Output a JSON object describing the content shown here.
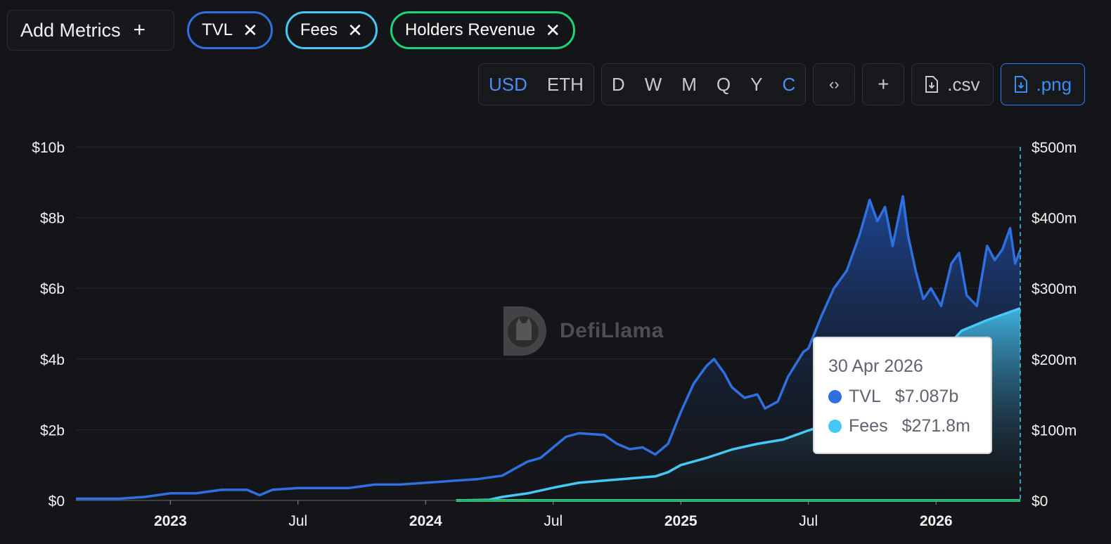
{
  "toolbar": {
    "add_metrics_label": "Add Metrics",
    "metrics": [
      {
        "label": "TVL",
        "color": "#2f6fe0"
      },
      {
        "label": "Fees",
        "color": "#45c8f5"
      },
      {
        "label": "Holders Revenue",
        "color": "#1ed47a"
      }
    ],
    "currency": {
      "options": [
        "USD",
        "ETH"
      ],
      "selected": "USD"
    },
    "granularity": {
      "options": [
        "D",
        "W",
        "M",
        "Q",
        "Y",
        "C"
      ],
      "selected": "C"
    },
    "embed_icon": "code-icon",
    "add_icon": "plus-icon",
    "csv_label": ".csv",
    "png_label": ".png"
  },
  "tooltip": {
    "date": "30 Apr 2026",
    "rows": [
      {
        "name": "TVL",
        "value": "$7.087b",
        "color": "#2f6fe0"
      },
      {
        "name": "Fees",
        "value": "$271.8m",
        "color": "#45c8f5"
      }
    ]
  },
  "watermark": "DefiLlama",
  "chart_data": {
    "type": "area",
    "y_left": {
      "ticks": [
        "$0",
        "$2b",
        "$4b",
        "$6b",
        "$8b",
        "$10b"
      ],
      "range": [
        0,
        10
      ]
    },
    "y_right": {
      "ticks": [
        "$0",
        "$100m",
        "$200m",
        "$300m",
        "$400m",
        "$500m"
      ],
      "range": [
        0,
        500
      ]
    },
    "x_ticks": [
      {
        "label": "2023",
        "bold": true,
        "t": 2023.0
      },
      {
        "label": "Jul",
        "bold": false,
        "t": 2023.5
      },
      {
        "label": "2024",
        "bold": true,
        "t": 2024.0
      },
      {
        "label": "Jul",
        "bold": false,
        "t": 2024.5
      },
      {
        "label": "2025",
        "bold": true,
        "t": 2025.0
      },
      {
        "label": "Jul",
        "bold": false,
        "t": 2025.5
      },
      {
        "label": "2026",
        "bold": true,
        "t": 2026.0
      }
    ],
    "x_range": [
      2022.63,
      2026.33
    ],
    "grid": true,
    "series": [
      {
        "name": "TVL",
        "axis": "left",
        "color": "#2f6fe0",
        "points": [
          [
            2022.63,
            0.05
          ],
          [
            2022.8,
            0.05
          ],
          [
            2022.9,
            0.1
          ],
          [
            2023.0,
            0.2
          ],
          [
            2023.1,
            0.2
          ],
          [
            2023.2,
            0.3
          ],
          [
            2023.3,
            0.3
          ],
          [
            2023.35,
            0.15
          ],
          [
            2023.4,
            0.3
          ],
          [
            2023.5,
            0.35
          ],
          [
            2023.6,
            0.35
          ],
          [
            2023.7,
            0.35
          ],
          [
            2023.8,
            0.45
          ],
          [
            2023.9,
            0.45
          ],
          [
            2024.0,
            0.5
          ],
          [
            2024.1,
            0.55
          ],
          [
            2024.2,
            0.6
          ],
          [
            2024.3,
            0.7
          ],
          [
            2024.35,
            0.9
          ],
          [
            2024.4,
            1.1
          ],
          [
            2024.45,
            1.2
          ],
          [
            2024.5,
            1.5
          ],
          [
            2024.55,
            1.8
          ],
          [
            2024.6,
            1.9
          ],
          [
            2024.7,
            1.85
          ],
          [
            2024.75,
            1.6
          ],
          [
            2024.8,
            1.45
          ],
          [
            2024.85,
            1.5
          ],
          [
            2024.9,
            1.3
          ],
          [
            2024.95,
            1.6
          ],
          [
            2025.0,
            2.5
          ],
          [
            2025.05,
            3.3
          ],
          [
            2025.1,
            3.8
          ],
          [
            2025.13,
            4.0
          ],
          [
            2025.17,
            3.6
          ],
          [
            2025.2,
            3.2
          ],
          [
            2025.25,
            2.9
          ],
          [
            2025.3,
            3.0
          ],
          [
            2025.33,
            2.6
          ],
          [
            2025.38,
            2.8
          ],
          [
            2025.42,
            3.5
          ],
          [
            2025.48,
            4.2
          ],
          [
            2025.5,
            4.3
          ],
          [
            2025.55,
            5.2
          ],
          [
            2025.6,
            6.0
          ],
          [
            2025.65,
            6.5
          ],
          [
            2025.7,
            7.5
          ],
          [
            2025.74,
            8.5
          ],
          [
            2025.77,
            7.9
          ],
          [
            2025.8,
            8.3
          ],
          [
            2025.83,
            7.2
          ],
          [
            2025.87,
            8.6
          ],
          [
            2025.89,
            7.5
          ],
          [
            2025.92,
            6.5
          ],
          [
            2025.95,
            5.7
          ],
          [
            2025.98,
            6.0
          ],
          [
            2026.02,
            5.5
          ],
          [
            2026.06,
            6.7
          ],
          [
            2026.09,
            7.0
          ],
          [
            2026.12,
            5.8
          ],
          [
            2026.16,
            5.5
          ],
          [
            2026.2,
            7.2
          ],
          [
            2026.23,
            6.8
          ],
          [
            2026.26,
            7.1
          ],
          [
            2026.29,
            7.7
          ],
          [
            2026.31,
            6.7
          ],
          [
            2026.33,
            7.087
          ]
        ]
      },
      {
        "name": "Fees",
        "axis": "right",
        "color": "#45c8f5",
        "points": [
          [
            2024.12,
            0
          ],
          [
            2024.25,
            1
          ],
          [
            2024.3,
            5
          ],
          [
            2024.4,
            10
          ],
          [
            2024.5,
            18
          ],
          [
            2024.6,
            25
          ],
          [
            2024.7,
            28
          ],
          [
            2024.8,
            31
          ],
          [
            2024.9,
            34
          ],
          [
            2024.95,
            40
          ],
          [
            2025.0,
            50
          ],
          [
            2025.1,
            60
          ],
          [
            2025.2,
            72
          ],
          [
            2025.3,
            80
          ],
          [
            2025.4,
            86
          ],
          [
            2025.5,
            99
          ],
          [
            2025.6,
            110
          ],
          [
            2025.7,
            125
          ],
          [
            2025.8,
            150
          ],
          [
            2025.9,
            175
          ],
          [
            2026.0,
            200
          ],
          [
            2026.1,
            240
          ],
          [
            2026.2,
            255
          ],
          [
            2026.33,
            271.8
          ]
        ]
      },
      {
        "name": "Holders Revenue",
        "axis": "right",
        "color": "#1ed47a",
        "points": [
          [
            2024.12,
            0
          ],
          [
            2026.33,
            0
          ]
        ]
      }
    ]
  }
}
